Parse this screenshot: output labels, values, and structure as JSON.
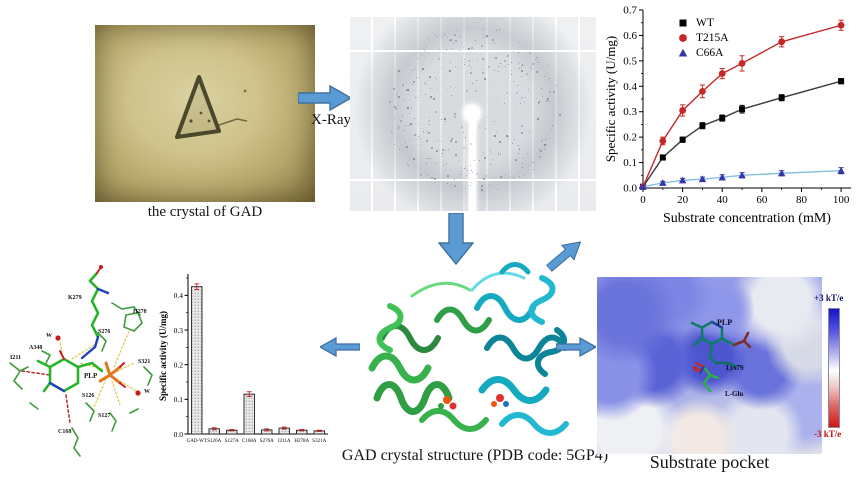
{
  "figure": {
    "crystal_caption": "the crystal of GAD",
    "xray_label": "X-Ray",
    "structure_caption": "GAD crystal structure (PDB code: 5GP4)",
    "pocket_caption": "Substrate pocket"
  },
  "pocket": {
    "labels": {
      "plp": "PLP",
      "lys": "Lys79",
      "glu": "L-Glu"
    },
    "scale_top": "+3 kT/e",
    "scale_bottom": "-3 kT/e",
    "scale_top_color": "#14146e",
    "scale_bottom_color": "#c01010"
  },
  "sticks": {
    "labels": [
      "W",
      "K279",
      "H278",
      "A348",
      "S276",
      "I211",
      "S321",
      "PLP",
      "S126",
      "W",
      "S127",
      "C168"
    ]
  },
  "colors": {
    "arrow_fill": "#5b9bd5",
    "arrow_stroke": "#41719c"
  },
  "chart_data": [
    {
      "type": "line",
      "title": "",
      "xlabel": "Substrate concentration (mM)",
      "ylabel": "Specific activity (U/mg)",
      "xlim": [
        0,
        105
      ],
      "ylim": [
        0,
        0.7
      ],
      "xticks": [
        0,
        20,
        40,
        60,
        80,
        100
      ],
      "yticks": [
        "0.0",
        "0.1",
        "0.2",
        "0.3",
        "0.4",
        "0.5",
        "0.6",
        "0.7"
      ],
      "legend_position": "top-left",
      "grid": false,
      "x": [
        0,
        10,
        20,
        30,
        40,
        50,
        70,
        100
      ],
      "series": [
        {
          "name": "WT",
          "marker": "square",
          "marker_color": "#000000",
          "line_color": "#3a3a3a",
          "values": [
            0.005,
            0.12,
            0.19,
            0.245,
            0.275,
            0.31,
            0.355,
            0.42
          ],
          "errors": [
            0.005,
            0.01,
            0.01,
            0.012,
            0.012,
            0.015,
            0.012,
            0.01
          ]
        },
        {
          "name": "T215A",
          "marker": "circle",
          "marker_color": "#c62828",
          "line_color": "#c62828",
          "values": [
            0.005,
            0.185,
            0.305,
            0.38,
            0.45,
            0.49,
            0.575,
            0.64
          ],
          "errors": [
            0.005,
            0.015,
            0.022,
            0.025,
            0.02,
            0.03,
            0.02,
            0.02
          ]
        },
        {
          "name": "C66A",
          "marker": "triangle",
          "marker_color": "#3535a8",
          "line_color": "#85c1e0",
          "values": [
            0.005,
            0.02,
            0.03,
            0.035,
            0.042,
            0.05,
            0.058,
            0.068
          ],
          "errors": [
            0.004,
            0.006,
            0.008,
            0.008,
            0.01,
            0.01,
            0.01,
            0.012
          ]
        }
      ]
    },
    {
      "type": "bar",
      "title": "",
      "xlabel": "",
      "ylabel": "Specific activity (U/mg)",
      "ylim": [
        0,
        0.45
      ],
      "yticks": [
        "0.0",
        "0.1",
        "0.2",
        "0.3",
        "0.4"
      ],
      "categories": [
        "GAD-WT",
        "S126A",
        "S127A",
        "C168A",
        "S276A",
        "I211A",
        "H278A",
        "S321A"
      ],
      "values": [
        0.425,
        0.015,
        0.011,
        0.115,
        0.012,
        0.017,
        0.011,
        0.009
      ],
      "errors": [
        0.008,
        0.003,
        0.002,
        0.007,
        0.003,
        0.003,
        0.002,
        0.002
      ],
      "bar_style": "hatched",
      "bar_fill": "#e9e9e9",
      "error_color": "#cc2222"
    }
  ]
}
